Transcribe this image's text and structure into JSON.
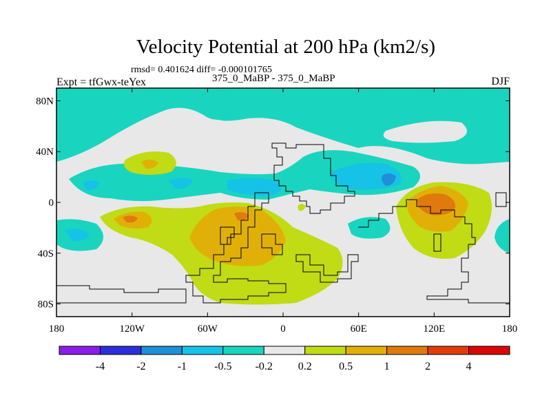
{
  "chart_data": {
    "type": "heatmap",
    "title": "Velocity Potential at 200 hPa (km2/s)",
    "stats_text": "rmsd= 0.401624 diff= -0.000101765",
    "left_label": "Expt = tfGwx-teYex",
    "center_label": "375_0_MaBP - 375_0_MaBP",
    "right_label": "DJF",
    "x_ticks": [
      "180",
      "120W",
      "60W",
      "0",
      "60E",
      "120E",
      "180"
    ],
    "x_tick_values": [
      -180,
      -120,
      -60,
      0,
      60,
      120,
      180
    ],
    "y_ticks": [
      "80N",
      "40N",
      "0",
      "40S",
      "80S"
    ],
    "y_tick_values": [
      80,
      40,
      0,
      -40,
      -80
    ],
    "xlim": [
      -180,
      180
    ],
    "ylim": [
      -90,
      90
    ],
    "colorbar": {
      "levels": [
        "-4",
        "-2",
        "-1",
        "-0.5",
        "-0.2",
        "0.2",
        "0.5",
        "1",
        "2",
        "4"
      ],
      "colors": [
        "#8a1ee6",
        "#2d2ed9",
        "#1f8fd6",
        "#16c2e6",
        "#19d5bf",
        "#e8e8e8",
        "#c1db14",
        "#e0b008",
        "#e07a0c",
        "#e03c0a",
        "#d90808"
      ]
    },
    "fill_colors": {
      "background": "#e8e8e8",
      "neg_02": "#19d5bf",
      "neg_05": "#16c2e6",
      "neg_1": "#1f8fd6",
      "pos_02": "#c1db14",
      "pos_05": "#e0b008",
      "pos_1": "#e07a0c"
    }
  }
}
